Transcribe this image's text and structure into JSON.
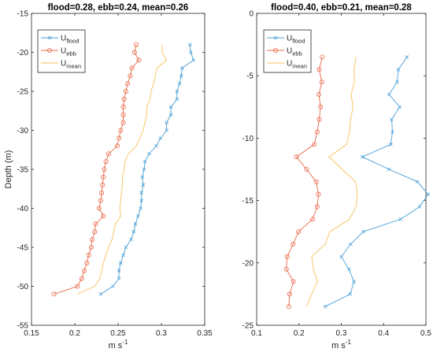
{
  "chart_data": [
    {
      "type": "line",
      "title": "flood=0.28, ebb=0.24, mean=0.26",
      "xlabel": "m s",
      "xlabel_sup": "-1",
      "ylabel": "Depth (m)",
      "xlim": [
        0.15,
        0.35
      ],
      "ylim": [
        -55,
        -15
      ],
      "xticks": [
        "0.15",
        "0.2",
        "0.25",
        "0.3",
        "0.35"
      ],
      "xtick_values": [
        0.15,
        0.2,
        0.25,
        0.3,
        0.35
      ],
      "yticks": [
        "-55",
        "-50",
        "-45",
        "-40",
        "-35",
        "-30",
        "-25",
        "-20",
        "-15"
      ],
      "ytick_values": [
        -55,
        -50,
        -45,
        -40,
        -35,
        -30,
        -25,
        -20,
        -15
      ],
      "grid": false,
      "legend_position": "top-left",
      "y": [
        -19,
        -20,
        -21,
        -22,
        -23,
        -24,
        -25,
        -26,
        -27,
        -28,
        -29,
        -30,
        -31,
        -32,
        -33,
        -34,
        -35,
        -36,
        -37,
        -38,
        -39,
        -40,
        -41,
        -42,
        -43,
        -44,
        -45,
        -46,
        -47,
        -48,
        -49,
        -50,
        -51
      ],
      "series": [
        {
          "name": "U",
          "name_sub": "flood",
          "color": "#4a9fd8",
          "marker": "x",
          "values": [
            0.333,
            0.334,
            0.337,
            0.324,
            0.323,
            0.321,
            0.318,
            0.318,
            0.311,
            0.311,
            0.306,
            0.306,
            0.299,
            0.294,
            0.286,
            0.281,
            0.28,
            0.278,
            0.279,
            0.277,
            0.277,
            0.276,
            0.273,
            0.27,
            0.268,
            0.265,
            0.259,
            0.256,
            0.253,
            0.251,
            0.251,
            0.244,
            0.23
          ]
        },
        {
          "name": "U",
          "name_sub": "ebb",
          "color": "#e8694a",
          "marker": "o",
          "values": [
            0.271,
            0.269,
            0.274,
            0.266,
            0.264,
            0.261,
            0.259,
            0.257,
            0.256,
            0.256,
            0.256,
            0.253,
            0.251,
            0.249,
            0.239,
            0.236,
            0.234,
            0.233,
            0.232,
            0.231,
            0.23,
            0.228,
            0.233,
            0.224,
            0.223,
            0.22,
            0.219,
            0.216,
            0.214,
            0.211,
            0.208,
            0.203,
            0.176
          ]
        },
        {
          "name": "U",
          "name_sub": "mean",
          "color": "#f5c25a",
          "marker": "",
          "values": [
            0.301,
            0.301,
            0.306,
            0.295,
            0.293,
            0.291,
            0.288,
            0.287,
            0.283,
            0.283,
            0.281,
            0.279,
            0.275,
            0.271,
            0.262,
            0.258,
            0.257,
            0.255,
            0.255,
            0.254,
            0.253,
            0.252,
            0.253,
            0.247,
            0.245,
            0.243,
            0.239,
            0.236,
            0.233,
            0.231,
            0.229,
            0.223,
            0.203
          ]
        }
      ]
    },
    {
      "type": "line",
      "title": "flood=0.40, ebb=0.21, mean=0.28",
      "xlabel": "m s",
      "xlabel_sup": "-1",
      "ylabel": "",
      "xlim": [
        0.1,
        0.5
      ],
      "ylim": [
        -25,
        0
      ],
      "xticks": [
        "0.1",
        "0.2",
        "0.3",
        "0.4",
        "0.5"
      ],
      "xtick_values": [
        0.1,
        0.2,
        0.3,
        0.4,
        0.5
      ],
      "yticks": [
        "-25",
        "-20",
        "-15",
        "-10",
        "-5",
        "0"
      ],
      "ytick_values": [
        -25,
        -20,
        -15,
        -10,
        -5,
        0
      ],
      "grid": false,
      "legend_position": "top-left",
      "y": [
        -3.5,
        -4.5,
        -5.5,
        -6.5,
        -7.5,
        -8.5,
        -9.5,
        -10.5,
        -11.5,
        -12.5,
        -13.5,
        -14.5,
        -15.5,
        -16.5,
        -17.5,
        -18.5,
        -19.5,
        -20.5,
        -21.5,
        -22.5,
        -23.5
      ],
      "series": [
        {
          "name": "U",
          "name_sub": "flood",
          "color": "#4a9fd8",
          "marker": "x",
          "values": [
            0.455,
            0.435,
            0.432,
            0.413,
            0.438,
            0.419,
            0.421,
            0.417,
            0.35,
            0.413,
            0.48,
            0.505,
            0.485,
            0.44,
            0.352,
            0.322,
            0.3,
            0.318,
            0.33,
            0.321,
            0.262
          ]
        },
        {
          "name": "U",
          "name_sub": "ebb",
          "color": "#e8694a",
          "marker": "o",
          "values": [
            0.255,
            0.248,
            0.254,
            0.247,
            0.251,
            0.248,
            0.243,
            0.236,
            0.194,
            0.218,
            0.241,
            0.246,
            0.243,
            0.232,
            0.199,
            0.186,
            0.172,
            0.17,
            0.187,
            0.178,
            0.176
          ]
        },
        {
          "name": "U",
          "name_sub": "mean",
          "color": "#f5c25a",
          "marker": "",
          "values": [
            0.335,
            0.33,
            0.331,
            0.323,
            0.328,
            0.322,
            0.319,
            0.313,
            0.271,
            0.302,
            0.334,
            0.338,
            0.335,
            0.319,
            0.273,
            0.262,
            0.23,
            0.234,
            0.244,
            0.23,
            0.218
          ]
        }
      ]
    }
  ]
}
